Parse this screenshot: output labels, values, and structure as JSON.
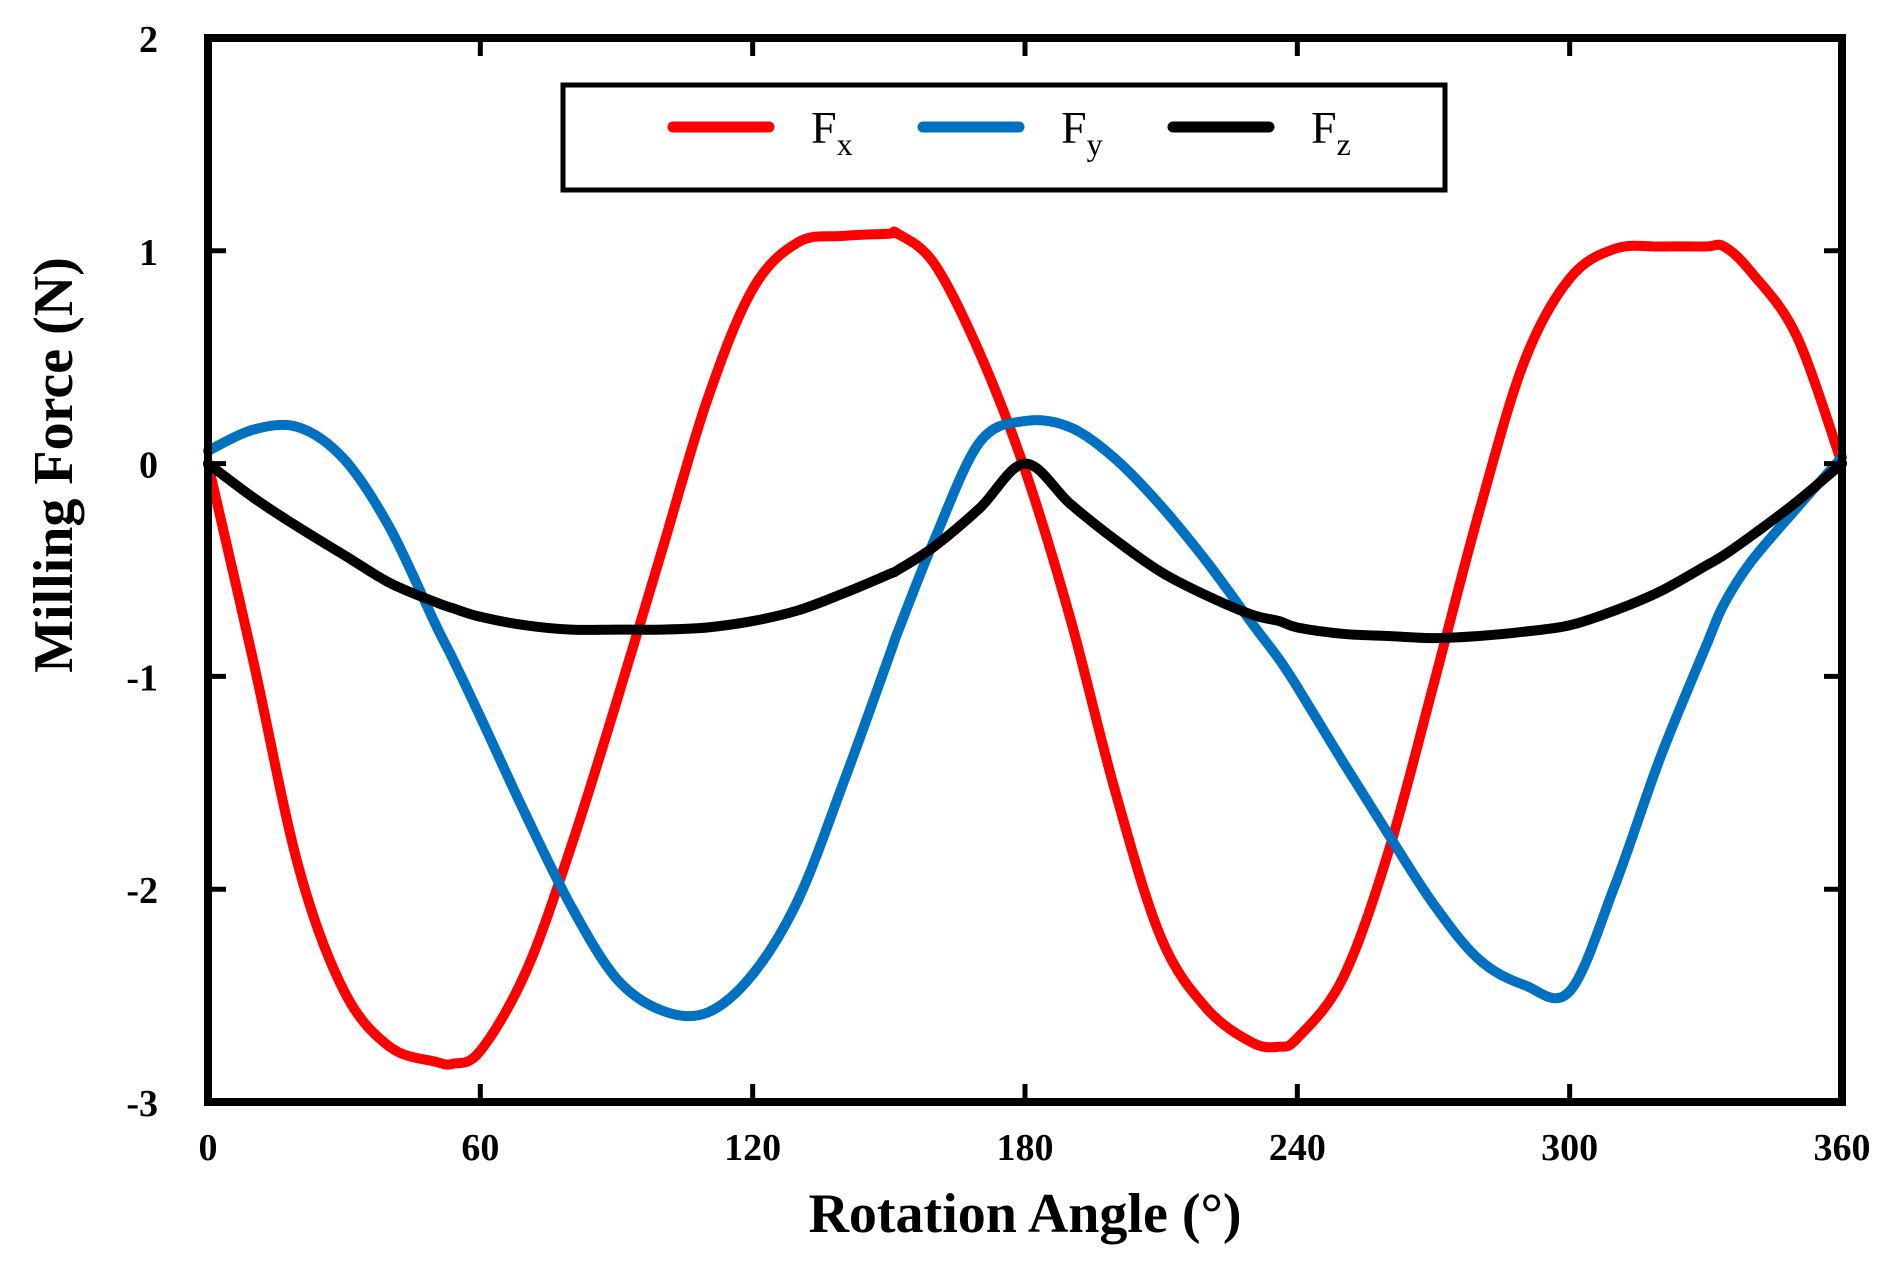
{
  "chart_data": {
    "type": "line",
    "title": "",
    "xlabel": "Rotation Angle (°)",
    "ylabel": "Milling Force (N)",
    "xlim": [
      0,
      360
    ],
    "ylim": [
      -3,
      2
    ],
    "x_ticks": [
      0,
      60,
      120,
      180,
      240,
      300,
      360
    ],
    "y_ticks": [
      2,
      1,
      0,
      -1,
      -2,
      -3
    ],
    "grid": false,
    "legend_position": "top-center",
    "x": [
      0,
      10,
      20,
      30,
      40,
      50,
      54,
      60,
      70,
      80,
      90,
      100,
      110,
      120,
      130,
      140,
      150,
      152,
      160,
      170,
      180,
      190,
      200,
      210,
      220,
      230,
      236,
      240,
      250,
      260,
      270,
      280,
      290,
      300,
      310,
      320,
      330,
      334,
      340,
      350,
      360
    ],
    "series": [
      {
        "name": "F",
        "subscript": "x",
        "color": "#ff0000",
        "values": [
          0,
          -0.93,
          -1.9,
          -2.48,
          -2.74,
          -2.81,
          -2.82,
          -2.76,
          -2.39,
          -1.8,
          -1.12,
          -0.41,
          0.3,
          0.82,
          1.04,
          1.07,
          1.08,
          1.08,
          0.94,
          0.52,
          -0.03,
          -0.73,
          -1.55,
          -2.23,
          -2.56,
          -2.72,
          -2.74,
          -2.7,
          -2.42,
          -1.83,
          -1.04,
          -0.23,
          0.48,
          0.87,
          1.01,
          1.02,
          1.02,
          1.02,
          0.9,
          0.6,
          0
        ]
      },
      {
        "name": "F",
        "subscript": "y",
        "color": "#0070c0",
        "values": [
          0.06,
          0.16,
          0.17,
          0.02,
          -0.3,
          -0.75,
          -0.92,
          -1.19,
          -1.65,
          -2.08,
          -2.42,
          -2.57,
          -2.58,
          -2.4,
          -2.05,
          -1.5,
          -0.91,
          -0.79,
          -0.36,
          0.1,
          0.2,
          0.17,
          0.02,
          -0.2,
          -0.46,
          -0.75,
          -0.92,
          -1.05,
          -1.4,
          -1.74,
          -2.07,
          -2.33,
          -2.45,
          -2.48,
          -1.98,
          -1.38,
          -0.86,
          -0.66,
          -0.46,
          -0.21,
          0.03
        ]
      },
      {
        "name": "F",
        "subscript": "z",
        "color": "#000000",
        "values": [
          0,
          -0.16,
          -0.3,
          -0.43,
          -0.56,
          -0.65,
          -0.68,
          -0.72,
          -0.76,
          -0.78,
          -0.78,
          -0.78,
          -0.77,
          -0.74,
          -0.69,
          -0.61,
          -0.52,
          -0.5,
          -0.39,
          -0.21,
          0,
          -0.19,
          -0.36,
          -0.51,
          -0.62,
          -0.71,
          -0.74,
          -0.77,
          -0.8,
          -0.81,
          -0.82,
          -0.81,
          -0.79,
          -0.76,
          -0.69,
          -0.6,
          -0.48,
          -0.43,
          -0.34,
          -0.18,
          0
        ]
      }
    ]
  }
}
